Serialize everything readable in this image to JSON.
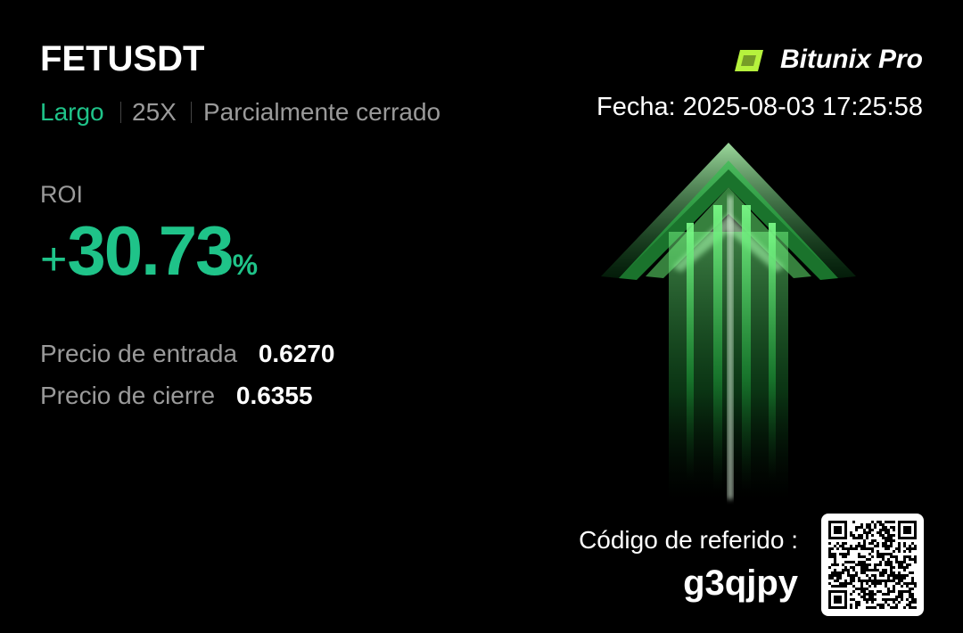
{
  "header": {
    "symbol": "FETUSDT",
    "side": "Largo",
    "leverage": "25X",
    "status": "Parcialmente cerrado",
    "brand": "Bitunix Pro",
    "date": "Fecha: 2025-08-03 17:25:58"
  },
  "roi": {
    "label": "ROI",
    "sign": "+",
    "value": "30.73",
    "unit": "%"
  },
  "prices": [
    {
      "label": "Precio de entrada",
      "value": "0.6270"
    },
    {
      "label": "Precio de cierre",
      "value": "0.6355"
    }
  ],
  "referral": {
    "label": "Código de referido :",
    "code": "g3qjpy"
  }
}
